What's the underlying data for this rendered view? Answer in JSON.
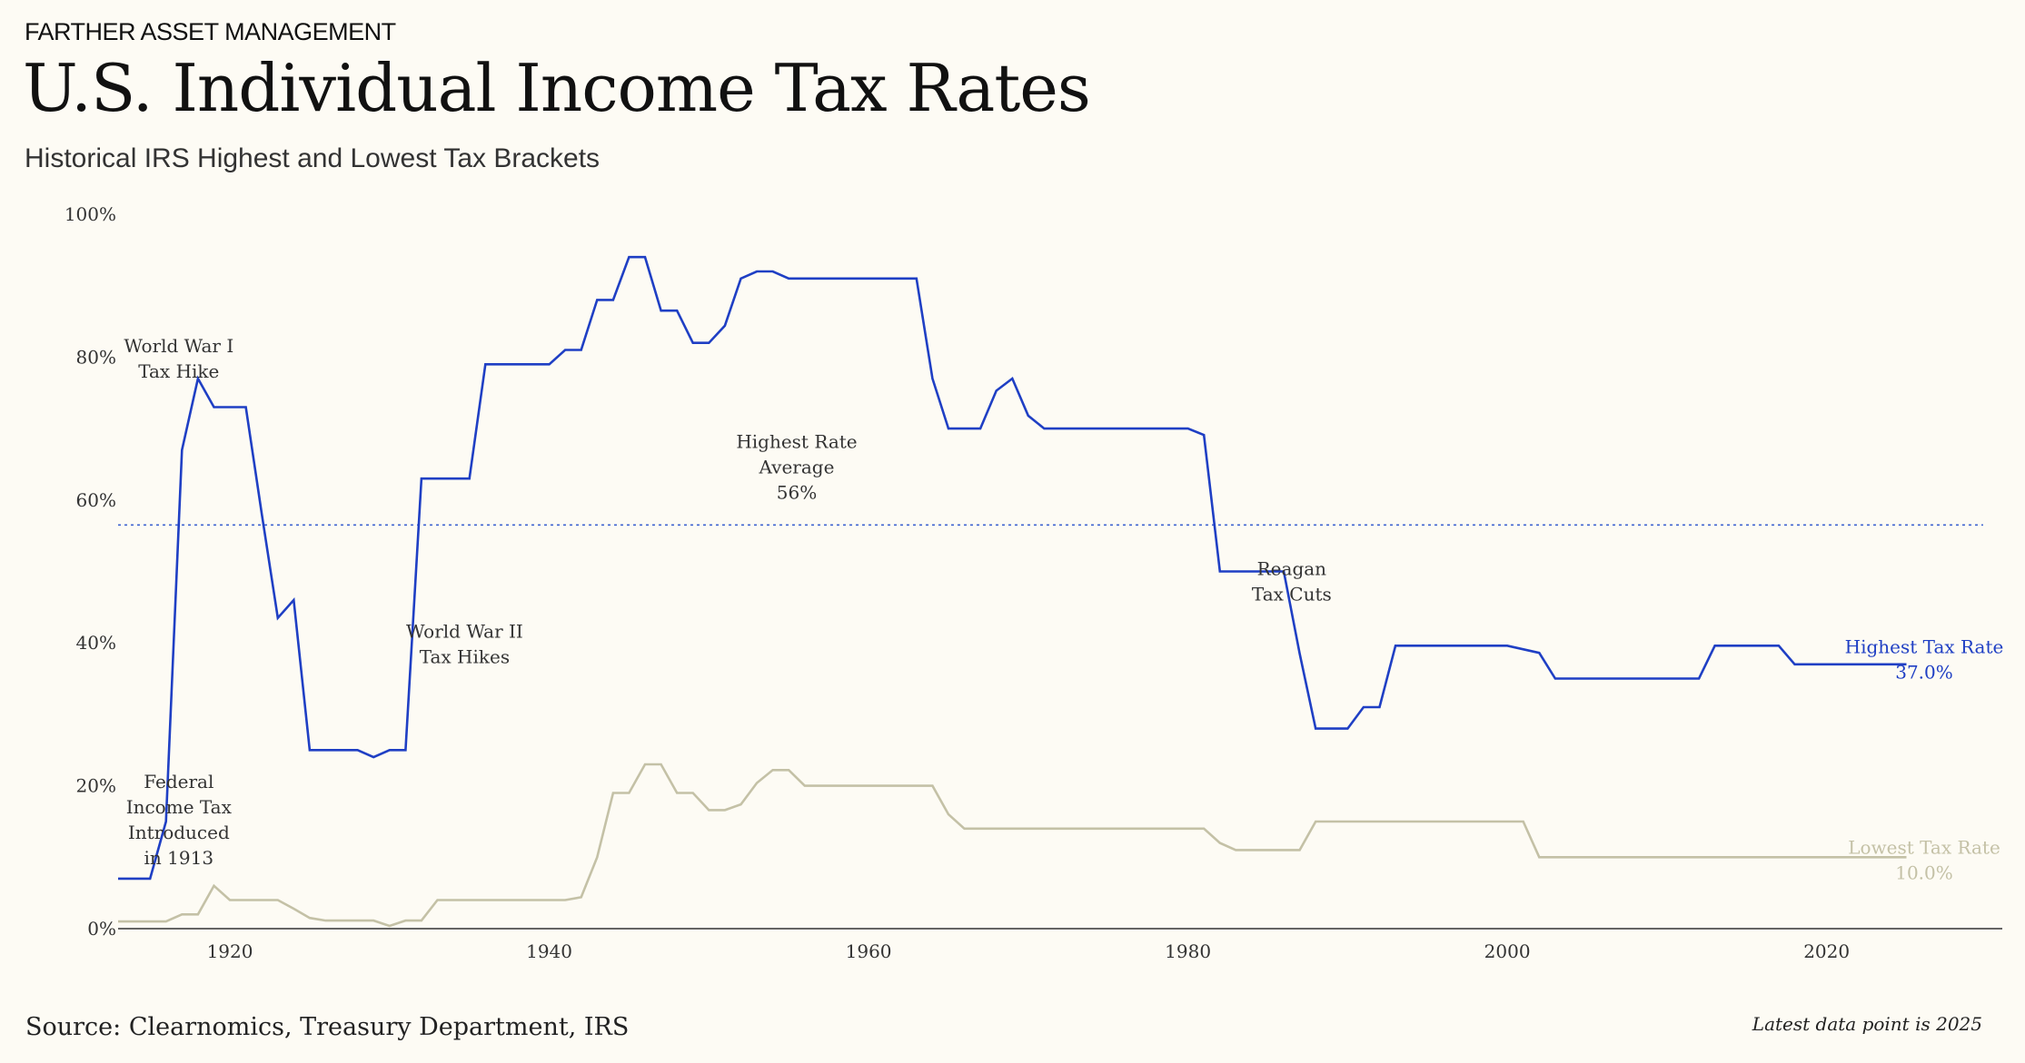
{
  "header": {
    "brand": "FARTHER ASSET MANAGEMENT",
    "title": "U.S. Individual Income Tax Rates",
    "subtitle": "Historical IRS Highest and Lowest Tax Brackets"
  },
  "footer": {
    "source": "Source: Clearnomics, Treasury Department, IRS",
    "latest": "Latest data point is 2025"
  },
  "colors": {
    "highest": "#1f3fc4",
    "lowest": "#c4c1a6",
    "average": "#3f63d0",
    "axis": "#333333"
  },
  "chart_data": {
    "type": "line",
    "title": "U.S. Individual Income Tax Rates",
    "xlabel": "",
    "ylabel": "",
    "xlim": [
      1913,
      2031
    ],
    "ylim": [
      0,
      100
    ],
    "x_ticks": [
      {
        "value": 1920,
        "label": "1920"
      },
      {
        "value": 1940,
        "label": "1940"
      },
      {
        "value": 1960,
        "label": "1960"
      },
      {
        "value": 1980,
        "label": "1980"
      },
      {
        "value": 2000,
        "label": "2000"
      },
      {
        "value": 2020,
        "label": "2020"
      }
    ],
    "y_ticks": [
      {
        "value": 0,
        "label": "0%"
      },
      {
        "value": 20,
        "label": "20%"
      },
      {
        "value": 40,
        "label": "40%"
      },
      {
        "value": 60,
        "label": "60%"
      },
      {
        "value": 80,
        "label": "80%"
      },
      {
        "value": 100,
        "label": "100%"
      }
    ],
    "series": [
      {
        "name": "Highest Tax Rate",
        "label": "Highest Tax Rate",
        "end_label": "37.0%",
        "color_key": "highest",
        "points": [
          [
            1913,
            7
          ],
          [
            1915,
            7
          ],
          [
            1916,
            15
          ],
          [
            1917,
            67
          ],
          [
            1918,
            77
          ],
          [
            1919,
            73
          ],
          [
            1921,
            73
          ],
          [
            1922,
            58
          ],
          [
            1923,
            43.5
          ],
          [
            1924,
            46
          ],
          [
            1925,
            25
          ],
          [
            1928,
            25
          ],
          [
            1929,
            24
          ],
          [
            1930,
            25
          ],
          [
            1931,
            25
          ],
          [
            1932,
            63
          ],
          [
            1935,
            63
          ],
          [
            1936,
            79
          ],
          [
            1940,
            79
          ],
          [
            1941,
            81
          ],
          [
            1942,
            81
          ],
          [
            1943,
            88
          ],
          [
            1944,
            88
          ],
          [
            1945,
            94
          ],
          [
            1946,
            94
          ],
          [
            1947,
            86.5
          ],
          [
            1948,
            86.5
          ],
          [
            1949,
            82
          ],
          [
            1950,
            82
          ],
          [
            1951,
            84.4
          ],
          [
            1952,
            91
          ],
          [
            1953,
            92
          ],
          [
            1954,
            92
          ],
          [
            1955,
            91
          ],
          [
            1963,
            91
          ],
          [
            1964,
            77
          ],
          [
            1965,
            70
          ],
          [
            1967,
            70
          ],
          [
            1968,
            75.3
          ],
          [
            1969,
            77
          ],
          [
            1970,
            71.8
          ],
          [
            1971,
            70
          ],
          [
            1980,
            70
          ],
          [
            1981,
            69.1
          ],
          [
            1982,
            50
          ],
          [
            1986,
            50
          ],
          [
            1987,
            38.5
          ],
          [
            1988,
            28
          ],
          [
            1990,
            28
          ],
          [
            1991,
            31
          ],
          [
            1992,
            31
          ],
          [
            1993,
            39.6
          ],
          [
            2000,
            39.6
          ],
          [
            2002,
            38.6
          ],
          [
            2003,
            35
          ],
          [
            2012,
            35
          ],
          [
            2013,
            39.6
          ],
          [
            2017,
            39.6
          ],
          [
            2018,
            37
          ],
          [
            2025,
            37
          ]
        ]
      },
      {
        "name": "Lowest Tax Rate",
        "label": "Lowest Tax Rate",
        "end_label": "10.0%",
        "color_key": "lowest",
        "points": [
          [
            1913,
            1
          ],
          [
            1916,
            1
          ],
          [
            1917,
            2
          ],
          [
            1918,
            2
          ],
          [
            1919,
            6
          ],
          [
            1920,
            4
          ],
          [
            1923,
            4
          ],
          [
            1924,
            2.8
          ],
          [
            1925,
            1.5
          ],
          [
            1926,
            1.125
          ],
          [
            1929,
            1.125
          ],
          [
            1930,
            0.375
          ],
          [
            1931,
            1.125
          ],
          [
            1932,
            1.125
          ],
          [
            1933,
            4
          ],
          [
            1941,
            4
          ],
          [
            1942,
            4.4
          ],
          [
            1943,
            10
          ],
          [
            1944,
            19
          ],
          [
            1945,
            19
          ],
          [
            1946,
            23
          ],
          [
            1947,
            23
          ],
          [
            1948,
            19
          ],
          [
            1949,
            19
          ],
          [
            1950,
            16.6
          ],
          [
            1951,
            16.6
          ],
          [
            1952,
            17.4
          ],
          [
            1953,
            20.4
          ],
          [
            1954,
            22.2
          ],
          [
            1955,
            22.2
          ],
          [
            1956,
            20
          ],
          [
            1963,
            20
          ],
          [
            1964,
            20
          ],
          [
            1965,
            16
          ],
          [
            1966,
            14
          ],
          [
            1981,
            14
          ],
          [
            1982,
            12
          ],
          [
            1983,
            11
          ],
          [
            1987,
            11
          ],
          [
            1988,
            15
          ],
          [
            2001,
            15
          ],
          [
            2002,
            10
          ],
          [
            2025,
            10
          ]
        ]
      }
    ],
    "reference_line": {
      "name": "Highest Rate Average",
      "value": 56.5,
      "style": "dotted"
    },
    "annotations": [
      {
        "key": "ww1",
        "x": 1916.8,
        "y": 80.7,
        "lines": [
          "World War I",
          "Tax Hike"
        ]
      },
      {
        "key": "avg",
        "x": 1955.5,
        "y": 67.3,
        "lines": [
          "Highest Rate",
          "Average",
          "56%"
        ]
      },
      {
        "key": "ww2",
        "x": 1934.7,
        "y": 40.7,
        "lines": [
          "World War II",
          "Tax Hikes"
        ]
      },
      {
        "key": "reagan",
        "x": 1986.5,
        "y": 49.5,
        "lines": [
          "Reagan",
          "Tax Cuts"
        ]
      },
      {
        "key": "federal",
        "x": 1916.8,
        "y": 19.7,
        "lines": [
          "Federal",
          "Income Tax",
          "Introduced",
          "in 1913"
        ]
      }
    ]
  }
}
